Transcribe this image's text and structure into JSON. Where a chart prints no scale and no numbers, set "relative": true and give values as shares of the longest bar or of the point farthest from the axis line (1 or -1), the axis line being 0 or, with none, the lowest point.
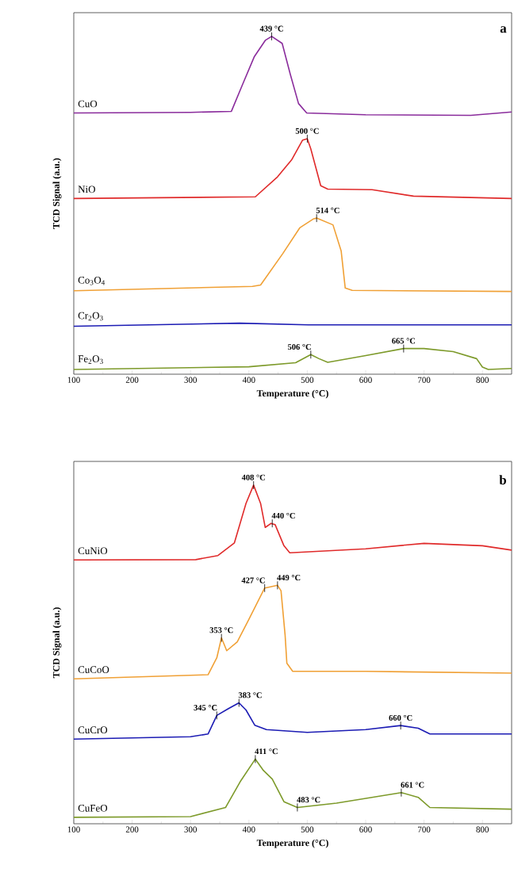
{
  "chart_data": [
    {
      "type": "line",
      "relative": true,
      "xlabel": "Temperature (°C)",
      "ylabel": "TCD Signal (a.u.)",
      "xlim": [
        100,
        850
      ],
      "xticks": [
        100,
        200,
        300,
        400,
        500,
        600,
        700,
        800
      ],
      "series": [
        {
          "name": "CuO",
          "color": "#8a2c9c",
          "x": [
            100,
            300,
            370,
            390,
            409,
            428,
            439,
            457,
            471,
            485,
            499,
            600,
            780,
            850
          ],
          "values": [
            0.773,
            0.775,
            0.778,
            0.861,
            0.939,
            0.988,
            1.0,
            0.979,
            0.887,
            0.801,
            0.773,
            0.768,
            0.766,
            0.776
          ]
        },
        {
          "name": "NiO",
          "color": "#e02a2a",
          "x": [
            100,
            411,
            449,
            473,
            492,
            500,
            506,
            523,
            535,
            611,
            682,
            850
          ],
          "values": [
            0.52,
            0.525,
            0.584,
            0.634,
            0.693,
            0.697,
            0.667,
            0.558,
            0.548,
            0.546,
            0.527,
            0.52
          ]
        },
        {
          "name": "Co$_{3}$O$_{4}$",
          "color": "#f0a035",
          "x": [
            100,
            406,
            420,
            458,
            487,
            511,
            516,
            544,
            558,
            565,
            577,
            850
          ],
          "values": [
            0.247,
            0.26,
            0.264,
            0.357,
            0.433,
            0.46,
            0.462,
            0.442,
            0.365,
            0.255,
            0.248,
            0.245
          ]
        },
        {
          "name": "Cr$_{2}$O$_{3}$",
          "color": "#1c1cb4",
          "x": [
            100,
            384,
            502,
            850
          ],
          "values": [
            0.142,
            0.151,
            0.146,
            0.146
          ]
        },
        {
          "name": "Fe$_{2}$O$_{3}$",
          "color": "#7d9a2a",
          "x": [
            100,
            400,
            480,
            506,
            520,
            535,
            600,
            665,
            700,
            750,
            790,
            800,
            810,
            850
          ],
          "values": [
            0.014,
            0.022,
            0.034,
            0.058,
            0.046,
            0.035,
            0.055,
            0.076,
            0.076,
            0.067,
            0.046,
            0.021,
            0.014,
            0.017
          ]
        }
      ],
      "annotations": [
        "a",
        {
          "text": "439 °C",
          "x": 439,
          "y": 1.0
        },
        {
          "text": "500 °C",
          "x": 500,
          "y": 0.697
        },
        {
          "text": "514 °C",
          "x": 516,
          "y": 0.462
        },
        {
          "text": "506 °C",
          "x": 506,
          "y": 0.058
        },
        {
          "text": "665 °C",
          "x": 665,
          "y": 0.076
        }
      ]
    },
    {
      "type": "line",
      "relative": true,
      "xlabel": "Temperature (°C)",
      "ylabel": "TCD Signal (a.u.)",
      "xlim": [
        100,
        850
      ],
      "xticks": [
        100,
        200,
        300,
        400,
        500,
        600,
        700,
        800
      ],
      "series": [
        {
          "name": "CuNiO",
          "color": "#e02a2a",
          "x": [
            100,
            309,
            347,
            375,
            395,
            408,
            420,
            428,
            438,
            445,
            460,
            470,
            600,
            700,
            800,
            850
          ],
          "values": [
            0.779,
            0.78,
            0.792,
            0.829,
            0.946,
            1.0,
            0.946,
            0.875,
            0.887,
            0.883,
            0.821,
            0.8,
            0.812,
            0.828,
            0.821,
            0.808
          ]
        },
        {
          "name": "CuCoO",
          "color": "#f0a035",
          "x": [
            100,
            330,
            345,
            353,
            362,
            380,
            400,
            427,
            449,
            455,
            462,
            465,
            475,
            600,
            850
          ],
          "values": [
            0.428,
            0.44,
            0.49,
            0.549,
            0.511,
            0.537,
            0.604,
            0.696,
            0.704,
            0.688,
            0.557,
            0.474,
            0.45,
            0.45,
            0.445
          ]
        },
        {
          "name": "CuCrO",
          "color": "#1c1cb4",
          "x": [
            100,
            300,
            330,
            345,
            365,
            383,
            395,
            410,
            430,
            500,
            600,
            660,
            690,
            710,
            850
          ],
          "values": [
            0.25,
            0.257,
            0.265,
            0.32,
            0.34,
            0.357,
            0.336,
            0.291,
            0.278,
            0.27,
            0.278,
            0.29,
            0.282,
            0.265,
            0.265
          ]
        },
        {
          "name": "CuFeO",
          "color": "#7d9a2a",
          "x": [
            100,
            300,
            360,
            385,
            411,
            425,
            440,
            460,
            483,
            550,
            661,
            690,
            710,
            850
          ],
          "values": [
            0.019,
            0.021,
            0.048,
            0.124,
            0.191,
            0.157,
            0.132,
            0.065,
            0.048,
            0.061,
            0.092,
            0.078,
            0.048,
            0.043
          ]
        }
      ],
      "annotations": [
        "b",
        {
          "text": "408 °C",
          "x": 408,
          "y": 1.0
        },
        {
          "text": "440 °C",
          "x": 440,
          "y": 0.887
        },
        {
          "text": "353 °C",
          "x": 353,
          "y": 0.549
        },
        {
          "text": "427 °C",
          "x": 427,
          "y": 0.696
        },
        {
          "text": "449 °C",
          "x": 449,
          "y": 0.704
        },
        {
          "text": "345 °C",
          "x": 345,
          "y": 0.32
        },
        {
          "text": "383 °C",
          "x": 383,
          "y": 0.357
        },
        {
          "text": "660 °C",
          "x": 660,
          "y": 0.29
        },
        {
          "text": "411 °C",
          "x": 411,
          "y": 0.191
        },
        {
          "text": "483 °C",
          "x": 483,
          "y": 0.048
        },
        {
          "text": "661 °C",
          "x": 661,
          "y": 0.092
        }
      ]
    }
  ]
}
